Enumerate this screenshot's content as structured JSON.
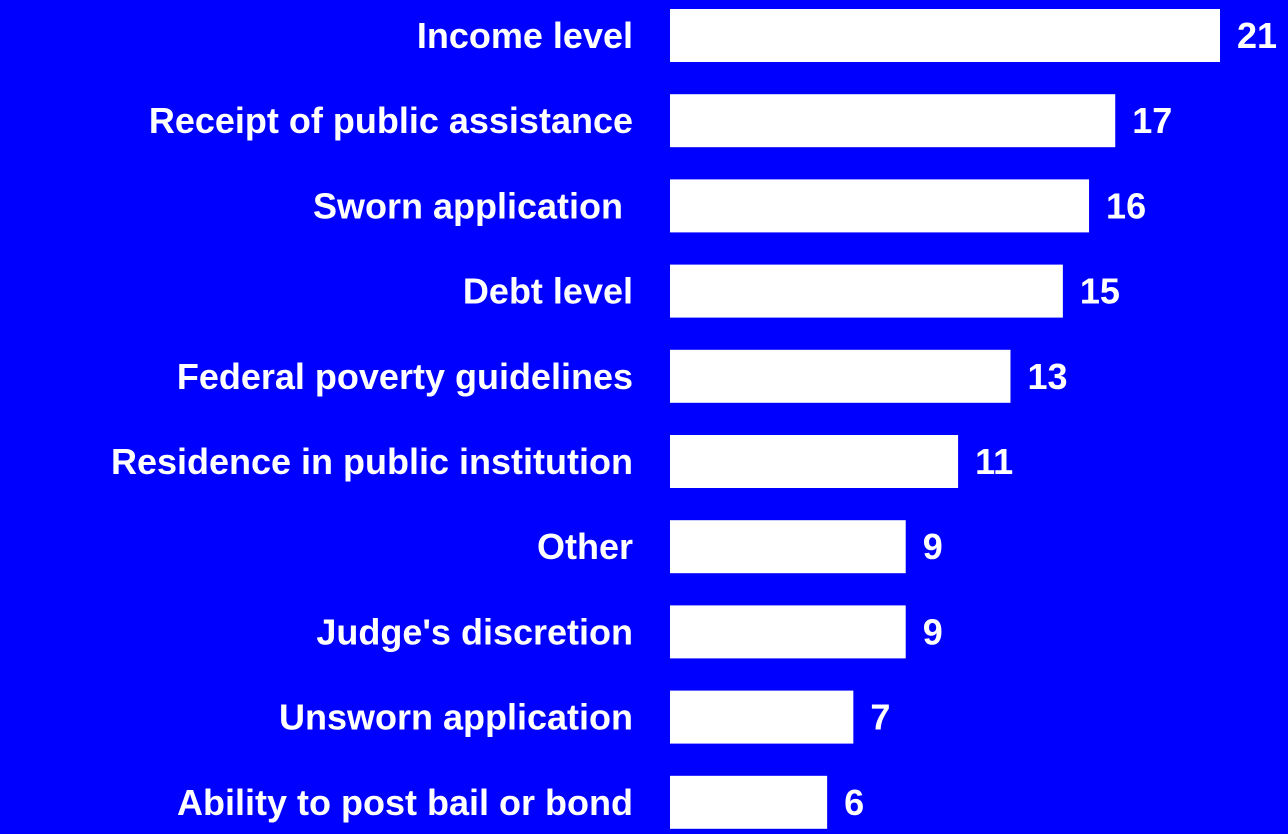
{
  "colors": {
    "background": "#0000ff",
    "bar": "#ffffff",
    "text": "#ffffff"
  },
  "chart_data": {
    "type": "bar",
    "orientation": "horizontal",
    "categories": [
      "Income level",
      "Receipt of public assistance",
      "Sworn application ",
      "Debt level",
      "Federal poverty guidelines",
      "Residence in public institution",
      "Other",
      "Judge's discretion",
      "Unsworn application",
      "Ability to post bail or bond"
    ],
    "values": [
      21,
      17,
      16,
      15,
      13,
      11,
      9,
      9,
      7,
      6
    ],
    "data_labels": [
      "21",
      "17",
      "16",
      "15",
      "13",
      "11",
      "9",
      "9",
      "7",
      "6"
    ],
    "xlim": [
      0,
      21
    ],
    "grid": false,
    "legend": "none"
  }
}
